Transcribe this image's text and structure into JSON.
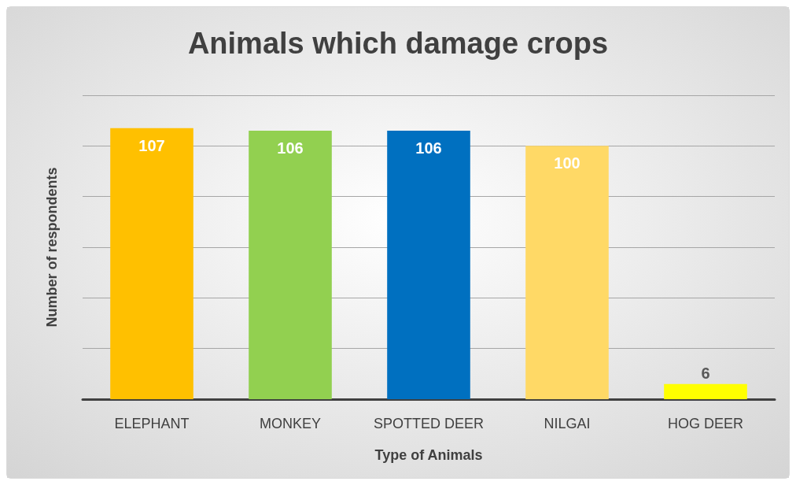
{
  "chart_data": {
    "type": "bar",
    "title": "Animals which damage crops",
    "xlabel": "Type of Animals",
    "ylabel": "Number of respondents",
    "categories": [
      "ELEPHANT",
      "MONKEY",
      "SPOTTED DEER",
      "NILGAI",
      "HOG DEER"
    ],
    "values": [
      107,
      106,
      106,
      100,
      6
    ],
    "colors": [
      "#ffc000",
      "#92d050",
      "#0070c0",
      "#ffd966",
      "#ffff00"
    ],
    "ylim": [
      0,
      120
    ],
    "yticks": [
      {
        "value": 0,
        "label": null
      },
      {
        "value": 20,
        "label": null
      },
      {
        "value": 40,
        "label": null
      },
      {
        "value": 60,
        "label": null
      },
      {
        "value": 80,
        "label": null
      },
      {
        "value": 100,
        "label": null
      },
      {
        "value": 120,
        "label": null
      }
    ],
    "grid": "y",
    "tick_labels": "x",
    "data_labels": true
  }
}
